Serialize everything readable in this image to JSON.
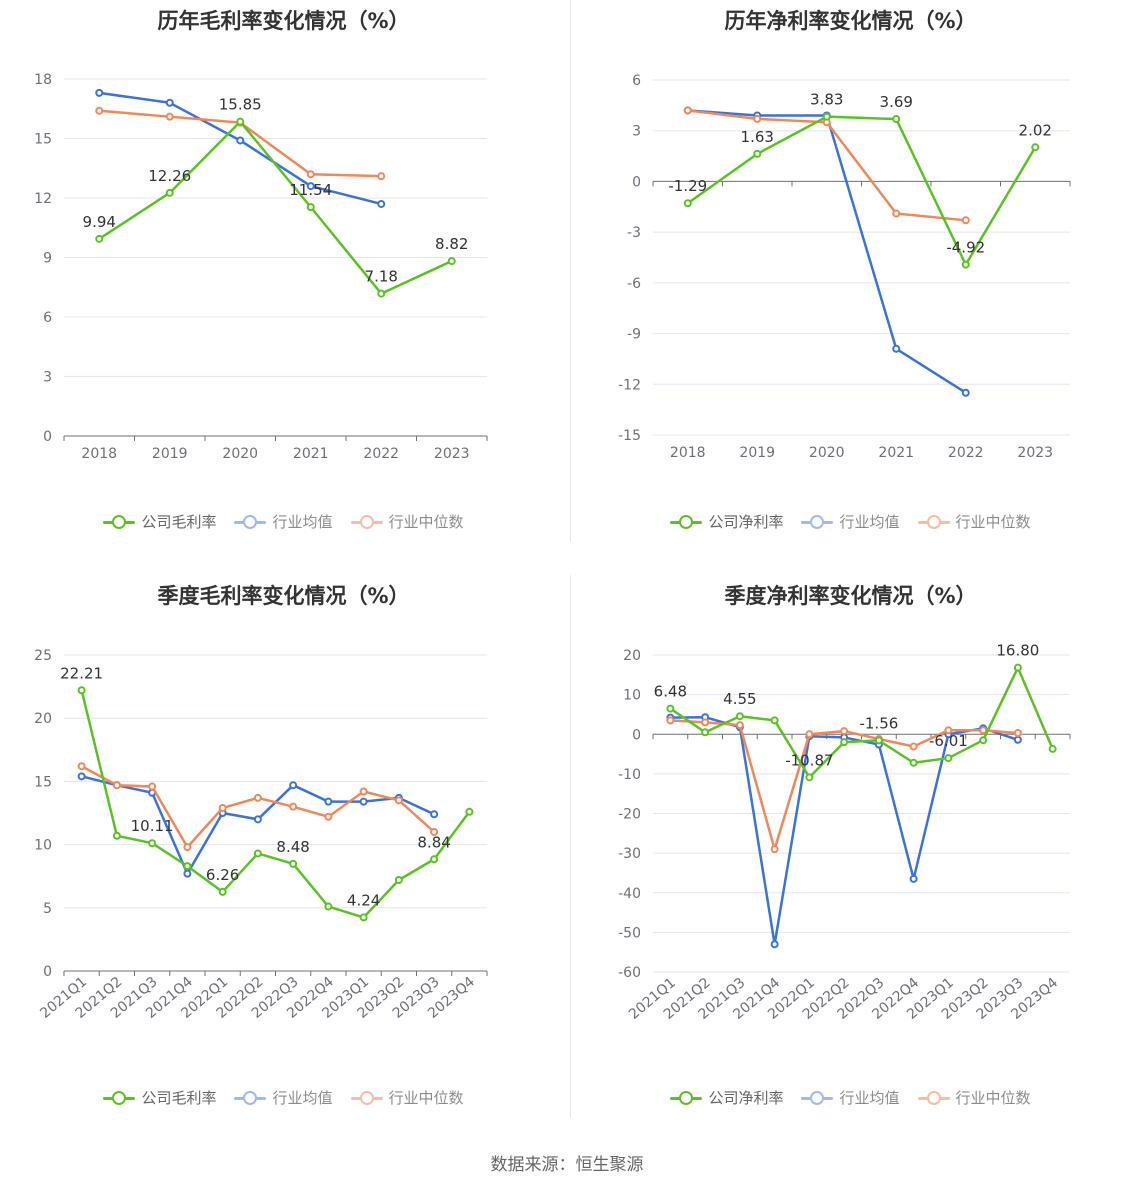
{
  "colors": {
    "company": "#5bc224",
    "industry_avg": "#3b73db",
    "industry_median": "#f0885a"
  },
  "legend_labels": {
    "gross": [
      "公司毛利率",
      "行业均值",
      "行业中位数"
    ],
    "net": [
      "公司净利率",
      "行业均值",
      "行业中位数"
    ]
  },
  "source": "数据来源：恒生聚源",
  "chart_data": [
    {
      "type": "line",
      "title": "历年毛利率变化情况（%）",
      "categories": [
        "2018",
        "2019",
        "2020",
        "2021",
        "2022",
        "2023"
      ],
      "ylim": [
        0,
        18
      ],
      "yticks": [
        0,
        3,
        6,
        9,
        12,
        15,
        18
      ],
      "grid": true,
      "legend": "bottom",
      "series": [
        {
          "name": "公司毛利率",
          "color": "#5bc224",
          "values": [
            9.94,
            12.26,
            15.85,
            11.54,
            7.18,
            8.82
          ],
          "labels": [
            "9.94",
            "12.26",
            "15.85",
            "11.54",
            "7.18",
            "8.82"
          ]
        },
        {
          "name": "行业均值",
          "color": "#3b73db",
          "values": [
            17.3,
            16.8,
            14.9,
            12.6,
            11.7,
            null
          ]
        },
        {
          "name": "行业中位数",
          "color": "#f0885a",
          "values": [
            16.4,
            16.1,
            15.8,
            13.2,
            13.1,
            null
          ]
        }
      ]
    },
    {
      "type": "line",
      "title": "历年净利率变化情况（%）",
      "categories": [
        "2018",
        "2019",
        "2020",
        "2021",
        "2022",
        "2023"
      ],
      "ylim": [
        -15,
        6
      ],
      "yticks": [
        -15,
        -12,
        -9,
        -6,
        -3,
        0,
        3,
        6
      ],
      "grid": true,
      "legend": "bottom",
      "series": [
        {
          "name": "公司净利率",
          "color": "#5bc224",
          "values": [
            -1.29,
            1.63,
            3.83,
            3.69,
            -4.92,
            2.02
          ],
          "labels": [
            "-1.29",
            "1.63",
            "3.83",
            "3.69",
            "-4.92",
            "2.02"
          ]
        },
        {
          "name": "行业均值",
          "color": "#3b73db",
          "values": [
            4.2,
            3.9,
            3.9,
            -9.9,
            -12.5,
            null
          ]
        },
        {
          "name": "行业中位数",
          "color": "#f0885a",
          "values": [
            4.2,
            3.7,
            3.5,
            -1.9,
            -2.3,
            null
          ]
        }
      ]
    },
    {
      "type": "line",
      "title": "季度毛利率变化情况（%）",
      "categories": [
        "2021Q1",
        "2021Q2",
        "2021Q3",
        "2021Q4",
        "2022Q1",
        "2022Q2",
        "2022Q3",
        "2022Q4",
        "2023Q1",
        "2023Q2",
        "2023Q3",
        "2023Q4"
      ],
      "ylim": [
        0,
        25
      ],
      "yticks": [
        0,
        5,
        10,
        15,
        20,
        25
      ],
      "grid": true,
      "legend": "bottom",
      "series": [
        {
          "name": "公司毛利率",
          "color": "#5bc224",
          "values": [
            22.21,
            10.7,
            10.11,
            8.3,
            6.26,
            9.3,
            8.48,
            5.1,
            4.24,
            7.2,
            8.84,
            12.6
          ],
          "labels": [
            "22.21",
            "",
            "10.11",
            "",
            "6.26",
            "",
            "8.48",
            "",
            "4.24",
            "",
            "8.84",
            ""
          ]
        },
        {
          "name": "行业均值",
          "color": "#3b73db",
          "values": [
            15.4,
            14.7,
            14.1,
            7.7,
            12.5,
            12.0,
            14.7,
            13.4,
            13.4,
            13.7,
            12.4,
            null
          ]
        },
        {
          "name": "行业中位数",
          "color": "#f0885a",
          "values": [
            16.2,
            14.7,
            14.6,
            9.8,
            12.9,
            13.7,
            13.0,
            12.2,
            14.2,
            13.5,
            11.0,
            null
          ]
        }
      ]
    },
    {
      "type": "line",
      "title": "季度净利率变化情况（%）",
      "categories": [
        "2021Q1",
        "2021Q2",
        "2021Q3",
        "2021Q4",
        "2022Q1",
        "2022Q2",
        "2022Q3",
        "2022Q4",
        "2023Q1",
        "2023Q2",
        "2023Q3",
        "2023Q4"
      ],
      "ylim": [
        -60,
        20
      ],
      "yticks": [
        -60,
        -50,
        -40,
        -30,
        -20,
        -10,
        0,
        10,
        20
      ],
      "grid": true,
      "legend": "bottom",
      "series": [
        {
          "name": "公司净利率",
          "color": "#5bc224",
          "values": [
            6.48,
            0.5,
            4.55,
            3.5,
            -10.87,
            -2.0,
            -1.56,
            -7.2,
            -6.01,
            -1.5,
            16.8,
            -3.7
          ],
          "labels": [
            "6.48",
            "",
            "4.55",
            "",
            "-10.87",
            "",
            "-1.56",
            "",
            "-6.01",
            "",
            "16.80",
            ""
          ]
        },
        {
          "name": "行业均值",
          "color": "#3b73db",
          "values": [
            4.2,
            4.3,
            1.8,
            -53.0,
            -0.5,
            -0.8,
            -2.6,
            -36.5,
            0.0,
            1.5,
            -1.4,
            null
          ]
        },
        {
          "name": "行业中位数",
          "color": "#f0885a",
          "values": [
            3.5,
            3.0,
            2.3,
            -29.0,
            0.0,
            0.8,
            -1.2,
            -3.1,
            1.0,
            1.0,
            0.3,
            null
          ]
        }
      ]
    }
  ]
}
